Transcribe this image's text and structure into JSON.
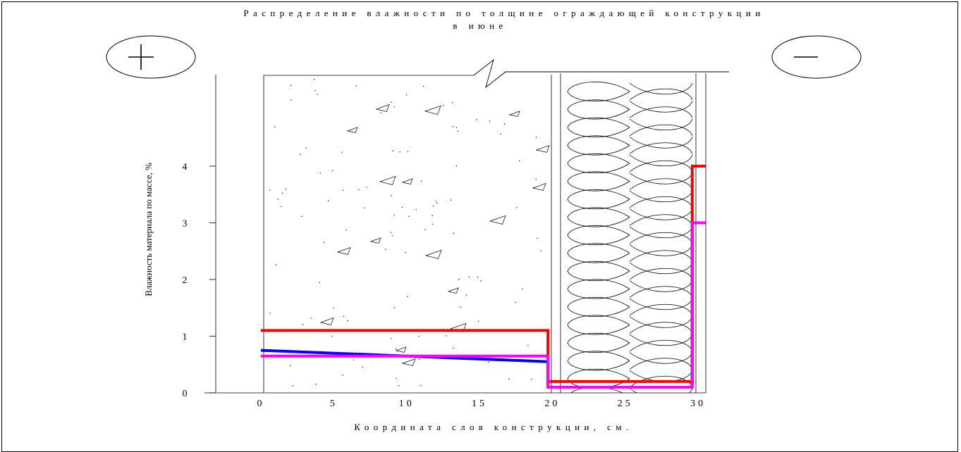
{
  "chart_data": {
    "type": "line",
    "title": "Распределение влажности по толщине ограждающей конструкции",
    "subtitle": "в июне",
    "xlabel": "Координата слоя конструкции, см.",
    "ylabel": "Влажность материала по массе, %",
    "xlim": [
      0,
      30
    ],
    "ylim": [
      0,
      5
    ],
    "x_ticks": [
      "0",
      "5",
      "10",
      "15",
      "20",
      "25",
      "30"
    ],
    "y_ticks": [
      "0",
      "1",
      "2",
      "3",
      "4"
    ],
    "layers": [
      {
        "material": "concrete",
        "x_from": 0,
        "x_to": 19.5
      },
      {
        "material": "insulation",
        "x_from": 20.2,
        "x_to": 29.3
      },
      {
        "material": "facing",
        "x_from": 29.3,
        "x_to": 30
      }
    ],
    "colors": {
      "red": "#ff0000",
      "blue": "#0000ff",
      "magenta": "#ff00ff"
    },
    "series": [
      {
        "color": "#ff0000",
        "points": [
          [
            0,
            1.1
          ],
          [
            19.7,
            1.1
          ],
          [
            19.7,
            0.2
          ],
          [
            29.6,
            0.2
          ],
          [
            29.6,
            4.0
          ],
          [
            30.5,
            4.0
          ]
        ]
      },
      {
        "color": "#0000ff",
        "points": [
          [
            0,
            0.75
          ],
          [
            19.7,
            0.55
          ],
          [
            19.7,
            0.1
          ],
          [
            29.6,
            0.1
          ],
          [
            29.6,
            3.0
          ],
          [
            30.5,
            3.0
          ]
        ]
      },
      {
        "color": "#ff00ff",
        "points": [
          [
            0,
            0.65
          ],
          [
            19.7,
            0.65
          ],
          [
            19.7,
            0.1
          ],
          [
            29.6,
            0.1
          ],
          [
            29.6,
            3.0
          ],
          [
            30.5,
            3.0
          ]
        ]
      }
    ]
  },
  "buttons": {
    "plus_icon": "plus-icon",
    "minus_icon": "minus-icon"
  }
}
